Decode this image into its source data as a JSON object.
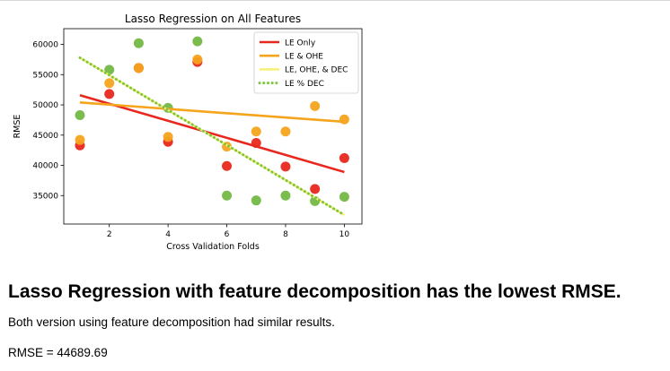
{
  "chart_data": {
    "type": "scatter",
    "title": "Lasso Regression on All Features",
    "xlabel": "Cross Validation Folds",
    "ylabel": "RMSE",
    "xlim": [
      0.45,
      10.6
    ],
    "ylim": [
      30300,
      62600
    ],
    "xticks": [
      2,
      4,
      6,
      8,
      10
    ],
    "yticks": [
      35000,
      40000,
      45000,
      50000,
      55000,
      60000
    ],
    "grid": false,
    "legend_position": "top-right",
    "legend": [
      {
        "label": "LE Only",
        "color": "#e8281e",
        "style": "solid"
      },
      {
        "label": "LE & OHE",
        "color": "#f5a41c",
        "style": "solid"
      },
      {
        "label": "LE, OHE, & DEC",
        "color": "#f7f07a",
        "style": "solid"
      },
      {
        "label": "LE % DEC",
        "color": "#7dc540",
        "style": "dotted"
      }
    ],
    "points": [
      {
        "color": "#74b844",
        "x": [
          1,
          2,
          3,
          4,
          5,
          6,
          7,
          8,
          9,
          10
        ],
        "y": [
          48300,
          55800,
          60200,
          49500,
          60500,
          35000,
          34200,
          35000,
          34100,
          34800
        ]
      },
      {
        "color": "#e8281e",
        "x": [
          1,
          2,
          3,
          4,
          5,
          6,
          7,
          8,
          9,
          10
        ],
        "y": [
          43300,
          51800,
          56100,
          43900,
          57100,
          39900,
          43700,
          39800,
          36100,
          41200
        ]
      },
      {
        "color": "#f5a41c",
        "x": [
          1,
          2,
          3,
          4,
          5,
          6,
          7,
          8,
          9,
          10
        ],
        "y": [
          44200,
          53600,
          56100,
          44700,
          57500,
          43100,
          45600,
          45600,
          49800,
          47600
        ]
      }
    ],
    "trendlines": [
      {
        "color": "#e8281e",
        "style": "solid",
        "x": [
          1,
          10
        ],
        "y": [
          51600,
          38900
        ]
      },
      {
        "color": "#f5a41c",
        "style": "solid",
        "x": [
          1,
          10
        ],
        "y": [
          50400,
          47200
        ]
      },
      {
        "color": "#f7f07a",
        "style": "solid",
        "x": [
          1,
          10
        ],
        "y": [
          57800,
          31800
        ]
      },
      {
        "color": "#7dc540",
        "style": "dotted",
        "x": [
          1,
          10
        ],
        "y": [
          57800,
          31800
        ]
      }
    ]
  },
  "headline": "Lasso Regression with feature decomposition has the lowest RMSE.",
  "description": "Both version using feature decomposition had similar results.",
  "rmse_text": "RMSE = 44689.69"
}
